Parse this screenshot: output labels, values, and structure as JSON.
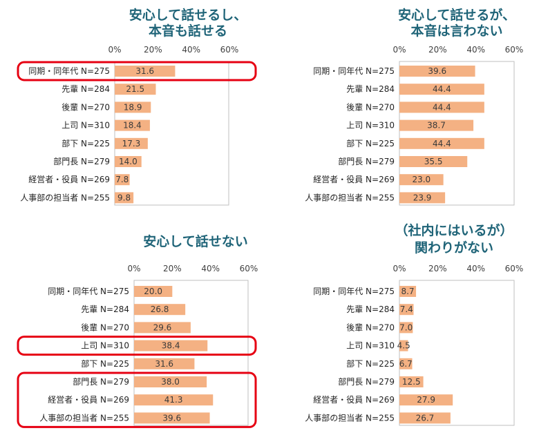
{
  "colors": {
    "bar": "#f4b183",
    "title": "#1f6478",
    "highlight": "#e60012",
    "axis": "#bfbfbf"
  },
  "chart_data": [
    {
      "type": "bar",
      "orientation": "horizontal",
      "title_lines": [
        "安心して話せるし、",
        "本音も話せる"
      ],
      "ticks": [
        "0%",
        "20%",
        "40%",
        "60%"
      ],
      "xlim": [
        0,
        60
      ],
      "categories": [
        "同期・同年代 N=275",
        "先輩 N=284",
        "後輩 N=270",
        "上司 N=310",
        "部下 N=225",
        "部門長 N=279",
        "経営者・役員 N=269",
        "人事部の担当者 N=255"
      ],
      "values": [
        31.6,
        21.5,
        18.9,
        18.4,
        17.3,
        14.0,
        7.8,
        9.8
      ],
      "value_labels": [
        "31.6",
        "21.5",
        "18.9",
        "18.4",
        "17.3",
        "14.0",
        "7.8",
        "9.8"
      ],
      "highlighted_rows": [
        [
          0,
          0
        ]
      ]
    },
    {
      "type": "bar",
      "orientation": "horizontal",
      "title_lines": [
        "安心して話せるが、",
        "本音は言わない"
      ],
      "ticks": [
        "0%",
        "20%",
        "40%",
        "60%"
      ],
      "xlim": [
        0,
        60
      ],
      "categories": [
        "同期・同年代 N=275",
        "先輩 N=284",
        "後輩 N=270",
        "上司 N=310",
        "部下 N=225",
        "部門長 N=279",
        "経営者・役員 N=269",
        "人事部の担当者 N=255"
      ],
      "values": [
        39.6,
        44.4,
        44.4,
        38.7,
        44.4,
        35.5,
        23.0,
        23.9
      ],
      "value_labels": [
        "39.6",
        "44.4",
        "44.4",
        "38.7",
        "44.4",
        "35.5",
        "23.0",
        "23.9"
      ],
      "highlighted_rows": []
    },
    {
      "type": "bar",
      "orientation": "horizontal",
      "title_lines": [
        "安心して話せない"
      ],
      "ticks": [
        "0%",
        "20%",
        "40%",
        "60%"
      ],
      "xlim": [
        0,
        60
      ],
      "categories": [
        "同期・同年代 N=275",
        "先輩 N=284",
        "後輩 N=270",
        "上司 N=310",
        "部下 N=225",
        "部門長 N=279",
        "経営者・役員 N=269",
        "人事部の担当者 N=255"
      ],
      "values": [
        20.0,
        26.8,
        29.6,
        38.4,
        31.6,
        38.0,
        41.3,
        39.6
      ],
      "value_labels": [
        "20.0",
        "26.8",
        "29.6",
        "38.4",
        "31.6",
        "38.0",
        "41.3",
        "39.6"
      ],
      "highlighted_rows": [
        [
          3,
          3
        ],
        [
          5,
          7
        ]
      ]
    },
    {
      "type": "bar",
      "orientation": "horizontal",
      "title_lines": [
        "（社内にはいるが）",
        "関わりがない"
      ],
      "ticks": [
        "0%",
        "20%",
        "40%",
        "60%"
      ],
      "xlim": [
        0,
        60
      ],
      "categories": [
        "同期・同年代 N=275",
        "先輩 N=284",
        "後輩 N=270",
        "上司 N=310",
        "部下 N=225",
        "部門長 N=279",
        "経営者・役員 N=269",
        "人事部の担当者 N=255"
      ],
      "values": [
        8.7,
        7.4,
        7.0,
        4.5,
        6.7,
        12.5,
        27.9,
        26.7
      ],
      "value_labels": [
        "8.7",
        "7.4",
        "7.0",
        "4.5",
        "6.7",
        "12.5",
        "27.9",
        "26.7"
      ],
      "highlighted_rows": []
    }
  ]
}
